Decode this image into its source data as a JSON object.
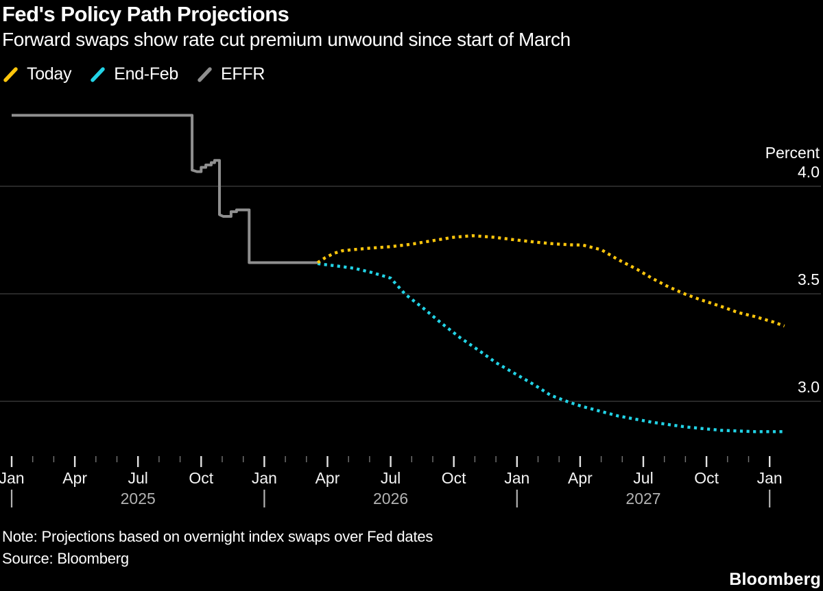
{
  "title": "Fed's Policy Path Projections",
  "subtitle": "Forward swaps show rate cut premium unwound since start of March",
  "legend": {
    "items": [
      {
        "label": "Today",
        "color": "#ffc60c"
      },
      {
        "label": "End-Feb",
        "color": "#22d3e6"
      },
      {
        "label": "EFFR",
        "color": "#8f8f8f"
      }
    ]
  },
  "footer": {
    "note": "Note: Projections based on overnight index swaps over Fed dates",
    "source": "Source: Bloomberg",
    "brand": "Bloomberg"
  },
  "colors": {
    "background": "#000000",
    "gridline": "#404040",
    "major_tick": "#e3e3e3",
    "minor_tick": "#767676",
    "year_text": "#b3b3b3",
    "axis_text": "#ffffff"
  },
  "chart_data": {
    "type": "line",
    "title": "Fed's Policy Path Projections",
    "subtitle": "Forward swaps show rate cut premium unwound since start of March",
    "ylabel": "Percent",
    "axis_unit_label": "Percent",
    "ylim": [
      2.75,
      4.4
    ],
    "x_unit": "months since Jan 2025",
    "xlim": [
      0,
      37
    ],
    "grid": [
      {
        "value": 4.0,
        "label": "4.0"
      },
      {
        "value": 3.5,
        "label": "3.5"
      },
      {
        "value": 3.0,
        "label": "3.0"
      }
    ],
    "legend_position": "top-left",
    "x_axis": {
      "tick_count": 37,
      "major_every": 3,
      "quarter_labels": [
        {
          "t": 0,
          "label": "Jan"
        },
        {
          "t": 3,
          "label": "Apr"
        },
        {
          "t": 6,
          "label": "Jul"
        },
        {
          "t": 9,
          "label": "Oct"
        },
        {
          "t": 12,
          "label": "Jan"
        },
        {
          "t": 15,
          "label": "Apr"
        },
        {
          "t": 18,
          "label": "Jul"
        },
        {
          "t": 21,
          "label": "Oct"
        },
        {
          "t": 24,
          "label": "Jan"
        },
        {
          "t": 27,
          "label": "Apr"
        },
        {
          "t": 30,
          "label": "Jul"
        },
        {
          "t": 33,
          "label": "Oct"
        },
        {
          "t": 36,
          "label": "Jan"
        }
      ],
      "year_labels": [
        {
          "t": 6,
          "label": "2025"
        },
        {
          "t": 18,
          "label": "2026"
        },
        {
          "t": 30,
          "label": "2027"
        }
      ],
      "year_boundaries": [
        0,
        12,
        24,
        36
      ]
    },
    "series": [
      {
        "name": "EFFR",
        "color": "#8f8f8f",
        "style": "solid",
        "points": [
          [
            0,
            4.33
          ],
          [
            8.57,
            4.33
          ],
          [
            8.57,
            4.075
          ],
          [
            8.8,
            4.068
          ],
          [
            9.0,
            4.068
          ],
          [
            9.0,
            4.088
          ],
          [
            9.22,
            4.088
          ],
          [
            9.22,
            4.099
          ],
          [
            9.48,
            4.099
          ],
          [
            9.48,
            4.11
          ],
          [
            9.64,
            4.11
          ],
          [
            9.64,
            4.12
          ],
          [
            9.87,
            4.12
          ],
          [
            9.87,
            3.868
          ],
          [
            10.05,
            3.86
          ],
          [
            10.42,
            3.86
          ],
          [
            10.42,
            3.882
          ],
          [
            10.68,
            3.882
          ],
          [
            10.68,
            3.89
          ],
          [
            11.28,
            3.89
          ],
          [
            11.28,
            3.645
          ],
          [
            14.53,
            3.645
          ]
        ]
      },
      {
        "name": "End-Feb",
        "color": "#22d3e6",
        "style": "dotted",
        "points": [
          [
            14.53,
            3.64
          ],
          [
            15.4,
            3.63
          ],
          [
            16.3,
            3.618
          ],
          [
            17.1,
            3.599
          ],
          [
            18.0,
            3.573
          ],
          [
            18.7,
            3.497
          ],
          [
            19.55,
            3.433
          ],
          [
            20.4,
            3.364
          ],
          [
            21.3,
            3.296
          ],
          [
            22.2,
            3.236
          ],
          [
            23.0,
            3.18
          ],
          [
            23.9,
            3.129
          ],
          [
            24.8,
            3.078
          ],
          [
            25.6,
            3.028
          ],
          [
            26.5,
            2.995
          ],
          [
            27.1,
            2.976
          ],
          [
            28.8,
            2.932
          ],
          [
            30.4,
            2.903
          ],
          [
            32.0,
            2.881
          ],
          [
            33.7,
            2.865
          ],
          [
            35.3,
            2.859
          ],
          [
            36.7,
            2.859
          ]
        ]
      },
      {
        "name": "Today",
        "color": "#ffc60c",
        "style": "dotted",
        "points": [
          [
            14.53,
            3.645
          ],
          [
            14.9,
            3.668
          ],
          [
            15.3,
            3.688
          ],
          [
            15.7,
            3.7
          ],
          [
            16.3,
            3.706
          ],
          [
            17.0,
            3.712
          ],
          [
            18.0,
            3.719
          ],
          [
            19.0,
            3.731
          ],
          [
            20.0,
            3.747
          ],
          [
            21.0,
            3.763
          ],
          [
            21.9,
            3.77
          ],
          [
            22.9,
            3.763
          ],
          [
            23.9,
            3.751
          ],
          [
            24.9,
            3.74
          ],
          [
            25.8,
            3.732
          ],
          [
            26.7,
            3.727
          ],
          [
            27.1,
            3.727
          ],
          [
            28.0,
            3.705
          ],
          [
            28.8,
            3.659
          ],
          [
            29.7,
            3.614
          ],
          [
            30.4,
            3.573
          ],
          [
            31.1,
            3.537
          ],
          [
            31.9,
            3.502
          ],
          [
            32.7,
            3.473
          ],
          [
            33.7,
            3.441
          ],
          [
            34.5,
            3.413
          ],
          [
            35.3,
            3.394
          ],
          [
            36.2,
            3.368
          ],
          [
            36.7,
            3.35
          ]
        ]
      }
    ]
  }
}
